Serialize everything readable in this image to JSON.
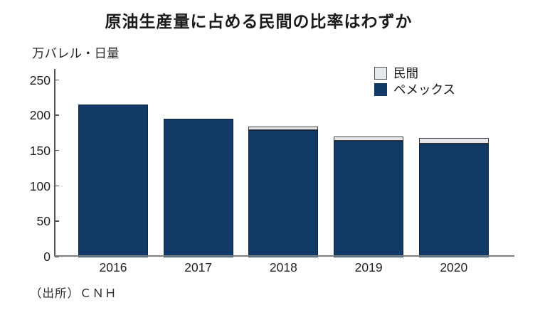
{
  "title": "原油生産量に占める民間の比率はわずか",
  "unit_label": "万バレル・日量",
  "source": "（出所）ＣＮＨ",
  "colors": {
    "pemex_fill": "#123A66",
    "pemex_border": "#0D2440",
    "private_fill": "#E7E8EC",
    "private_border": "#3A3A3A",
    "axis": "#555555",
    "text": "#1A1A1A"
  },
  "legend": {
    "items": [
      {
        "label": "民間",
        "fill": "#E7E8EC",
        "border": "#555555"
      },
      {
        "label": "ペメックス",
        "fill": "#123A66",
        "border": "#123A66"
      }
    ]
  },
  "chart_data": {
    "type": "bar",
    "stacked": true,
    "title": "原油生産量に占める民間の比率はわずか",
    "ylabel": "万バレル・日量",
    "xlabel": "",
    "categories": [
      "2016",
      "2017",
      "2018",
      "2019",
      "2020"
    ],
    "series": [
      {
        "name": "ペメックス",
        "color": "#123A66",
        "values": [
          215,
          195,
          179,
          164,
          160
        ]
      },
      {
        "name": "民間",
        "color": "#E7E8EC",
        "values": [
          0,
          0,
          3,
          4,
          6
        ]
      }
    ],
    "totals": [
      215,
      195,
      182,
      168,
      166
    ],
    "yticks": [
      0,
      50,
      100,
      150,
      200,
      250
    ],
    "ylim": [
      0,
      250
    ],
    "grid": false,
    "legend_position": "top-right",
    "source": "ＣＮＨ"
  }
}
